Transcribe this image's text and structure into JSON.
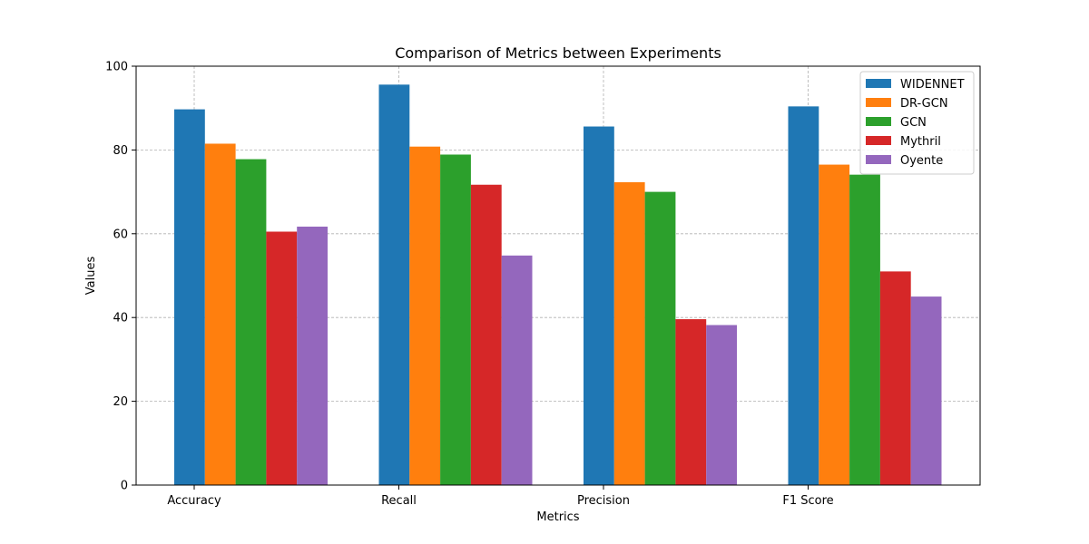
{
  "chart_data": {
    "type": "bar",
    "title": "Comparison of Metrics between Experiments",
    "xlabel": "Metrics",
    "ylabel": "Values",
    "categories": [
      "Accuracy",
      "Recall",
      "Precision",
      "F1 Score"
    ],
    "series": [
      {
        "name": "WIDENNET",
        "color": "#1f77b4",
        "values": [
          89.7,
          95.6,
          85.6,
          90.4
        ]
      },
      {
        "name": "DR-GCN",
        "color": "#ff7f0e",
        "values": [
          81.5,
          80.8,
          72.3,
          76.5
        ]
      },
      {
        "name": "GCN",
        "color": "#2ca02c",
        "values": [
          77.8,
          78.9,
          70.0,
          74.1
        ]
      },
      {
        "name": "Mythril",
        "color": "#d62728",
        "values": [
          60.5,
          71.7,
          39.6,
          51.0
        ]
      },
      {
        "name": "Oyente",
        "color": "#9467bd",
        "values": [
          61.7,
          54.8,
          38.2,
          45.0
        ]
      }
    ],
    "ylim": [
      0,
      100
    ],
    "yticks": [
      0,
      20,
      40,
      60,
      80,
      100
    ],
    "grid": true,
    "legend_position": "top-right"
  }
}
